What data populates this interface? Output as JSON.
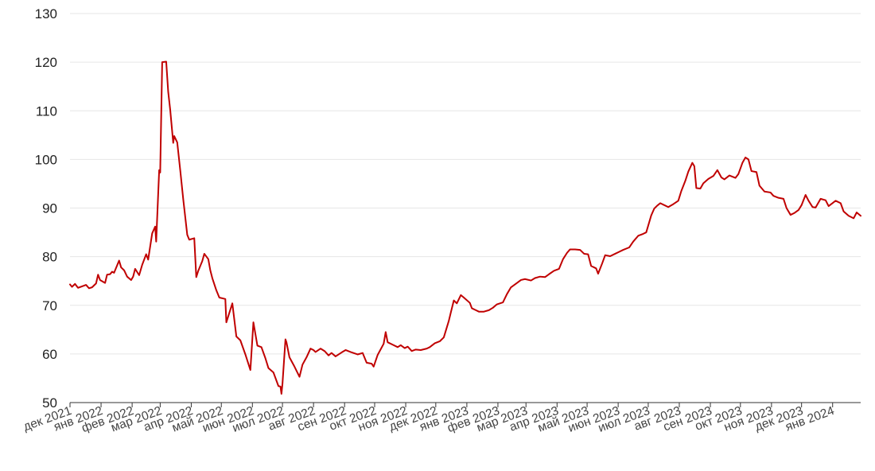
{
  "chart_data": {
    "type": "line",
    "title": "",
    "xlabel": "",
    "ylabel": "",
    "ylim": [
      50,
      130
    ],
    "y_ticks": [
      50,
      60,
      70,
      80,
      90,
      100,
      110,
      120,
      130
    ],
    "grid": "horizontal",
    "x_tick_labels": [
      "дек 2021",
      "янв 2022",
      "фев 2022",
      "мар 2022",
      "апр 2022",
      "май 2022",
      "июн 2022",
      "июл 2022",
      "авг 2022",
      "сен 2022",
      "окт 2022",
      "ноя 2022",
      "дек 2022",
      "янв 2023",
      "фев 2023",
      "мар 2023",
      "апр 2023",
      "май 2023",
      "июн 2023",
      "июл 2023",
      "авг 2023",
      "сен 2023",
      "окт 2023",
      "ноя 2023",
      "дек 2023",
      "янв 2024"
    ],
    "x_range": [
      "2021-12-01",
      "2024-01-29"
    ],
    "series": [
      {
        "name": "",
        "color": "#c00000",
        "points": [
          [
            "2021-12-01",
            74.3
          ],
          [
            "2021-12-03",
            73.8
          ],
          [
            "2021-12-06",
            74.4
          ],
          [
            "2021-12-09",
            73.6
          ],
          [
            "2021-12-13",
            73.9
          ],
          [
            "2021-12-17",
            74.2
          ],
          [
            "2021-12-20",
            73.5
          ],
          [
            "2021-12-23",
            73.7
          ],
          [
            "2021-12-27",
            74.5
          ],
          [
            "2021-12-29",
            76.3
          ],
          [
            "2021-12-31",
            75.2
          ],
          [
            "2022-01-05",
            74.6
          ],
          [
            "2022-01-07",
            76.3
          ],
          [
            "2022-01-10",
            76.4
          ],
          [
            "2022-01-12",
            76.9
          ],
          [
            "2022-01-14",
            76.7
          ],
          [
            "2022-01-17",
            78.2
          ],
          [
            "2022-01-19",
            79.2
          ],
          [
            "2022-01-21",
            77.8
          ],
          [
            "2022-01-24",
            77.2
          ],
          [
            "2022-01-27",
            75.9
          ],
          [
            "2022-01-31",
            75.2
          ],
          [
            "2022-02-02",
            75.9
          ],
          [
            "2022-02-04",
            77.5
          ],
          [
            "2022-02-08",
            76.2
          ],
          [
            "2022-02-11",
            78.3
          ],
          [
            "2022-02-15",
            80.5
          ],
          [
            "2022-02-17",
            79.4
          ],
          [
            "2022-02-21",
            84.8
          ],
          [
            "2022-02-24",
            86.2
          ],
          [
            "2022-02-25",
            83.1
          ],
          [
            "2022-02-28",
            97.8
          ],
          [
            "2022-03-01",
            97.3
          ],
          [
            "2022-03-03",
            120.0
          ],
          [
            "2022-03-07",
            120.1
          ],
          [
            "2022-03-09",
            113.9
          ],
          [
            "2022-03-11",
            110.2
          ],
          [
            "2022-03-14",
            103.4
          ],
          [
            "2022-03-15",
            104.8
          ],
          [
            "2022-03-18",
            103.5
          ],
          [
            "2022-03-21",
            97.8
          ],
          [
            "2022-03-24",
            91.8
          ],
          [
            "2022-03-28",
            84.5
          ],
          [
            "2022-03-30",
            83.5
          ],
          [
            "2022-04-04",
            83.8
          ],
          [
            "2022-04-06",
            75.8
          ],
          [
            "2022-04-08",
            77.1
          ],
          [
            "2022-04-12",
            79.1
          ],
          [
            "2022-04-14",
            80.6
          ],
          [
            "2022-04-18",
            79.5
          ],
          [
            "2022-04-20",
            77.2
          ],
          [
            "2022-04-22",
            75.6
          ],
          [
            "2022-04-26",
            73.1
          ],
          [
            "2022-04-29",
            71.6
          ],
          [
            "2022-05-05",
            71.3
          ],
          [
            "2022-05-06",
            66.5
          ],
          [
            "2022-05-12",
            70.4
          ],
          [
            "2022-05-16",
            63.6
          ],
          [
            "2022-05-20",
            62.8
          ],
          [
            "2022-05-25",
            59.9
          ],
          [
            "2022-05-30",
            56.7
          ],
          [
            "2022-06-02",
            66.5
          ],
          [
            "2022-06-06",
            61.7
          ],
          [
            "2022-06-10",
            61.4
          ],
          [
            "2022-06-14",
            59.1
          ],
          [
            "2022-06-17",
            57.1
          ],
          [
            "2022-06-22",
            56.2
          ],
          [
            "2022-06-27",
            53.4
          ],
          [
            "2022-06-29",
            53.3
          ],
          [
            "2022-06-30",
            51.8
          ],
          [
            "2022-07-01",
            53.8
          ],
          [
            "2022-07-04",
            63.0
          ],
          [
            "2022-07-05",
            62.4
          ],
          [
            "2022-07-08",
            59.3
          ],
          [
            "2022-07-13",
            57.4
          ],
          [
            "2022-07-18",
            55.3
          ],
          [
            "2022-07-21",
            57.8
          ],
          [
            "2022-07-25",
            59.3
          ],
          [
            "2022-07-29",
            61.1
          ],
          [
            "2022-08-01",
            60.8
          ],
          [
            "2022-08-03",
            60.4
          ],
          [
            "2022-08-08",
            61.1
          ],
          [
            "2022-08-12",
            60.6
          ],
          [
            "2022-08-16",
            59.7
          ],
          [
            "2022-08-19",
            60.2
          ],
          [
            "2022-08-23",
            59.5
          ],
          [
            "2022-08-29",
            60.3
          ],
          [
            "2022-09-02",
            60.8
          ],
          [
            "2022-09-07",
            60.4
          ],
          [
            "2022-09-14",
            59.9
          ],
          [
            "2022-09-19",
            60.2
          ],
          [
            "2022-09-23",
            58.2
          ],
          [
            "2022-09-28",
            58.0
          ],
          [
            "2022-09-30",
            57.4
          ],
          [
            "2022-10-04",
            59.8
          ],
          [
            "2022-10-10",
            62.1
          ],
          [
            "2022-10-12",
            64.5
          ],
          [
            "2022-10-14",
            62.4
          ],
          [
            "2022-10-19",
            61.9
          ],
          [
            "2022-10-24",
            61.4
          ],
          [
            "2022-10-27",
            61.8
          ],
          [
            "2022-10-31",
            61.2
          ],
          [
            "2022-11-03",
            61.5
          ],
          [
            "2022-11-07",
            60.6
          ],
          [
            "2022-11-11",
            60.9
          ],
          [
            "2022-11-16",
            60.8
          ],
          [
            "2022-11-22",
            61.1
          ],
          [
            "2022-11-25",
            61.4
          ],
          [
            "2022-11-30",
            62.2
          ],
          [
            "2022-12-05",
            62.6
          ],
          [
            "2022-12-09",
            63.4
          ],
          [
            "2022-12-14",
            66.8
          ],
          [
            "2022-12-16",
            68.5
          ],
          [
            "2022-12-19",
            71.0
          ],
          [
            "2022-12-22",
            70.4
          ],
          [
            "2022-12-26",
            72.1
          ],
          [
            "2022-12-29",
            71.6
          ],
          [
            "2023-01-04",
            70.5
          ],
          [
            "2023-01-06",
            69.4
          ],
          [
            "2023-01-10",
            69.0
          ],
          [
            "2023-01-13",
            68.7
          ],
          [
            "2023-01-18",
            68.7
          ],
          [
            "2023-01-23",
            69.0
          ],
          [
            "2023-01-27",
            69.5
          ],
          [
            "2023-01-31",
            70.2
          ],
          [
            "2023-02-06",
            70.6
          ],
          [
            "2023-02-10",
            72.3
          ],
          [
            "2023-02-14",
            73.7
          ],
          [
            "2023-02-20",
            74.6
          ],
          [
            "2023-02-24",
            75.2
          ],
          [
            "2023-02-28",
            75.4
          ],
          [
            "2023-03-06",
            75.1
          ],
          [
            "2023-03-10",
            75.6
          ],
          [
            "2023-03-15",
            75.9
          ],
          [
            "2023-03-20",
            75.8
          ],
          [
            "2023-03-24",
            76.4
          ],
          [
            "2023-03-29",
            77.1
          ],
          [
            "2023-04-03",
            77.5
          ],
          [
            "2023-04-07",
            79.5
          ],
          [
            "2023-04-11",
            80.8
          ],
          [
            "2023-04-14",
            81.5
          ],
          [
            "2023-04-19",
            81.5
          ],
          [
            "2023-04-24",
            81.4
          ],
          [
            "2023-04-28",
            80.6
          ],
          [
            "2023-05-02",
            80.5
          ],
          [
            "2023-05-05",
            78.1
          ],
          [
            "2023-05-10",
            77.6
          ],
          [
            "2023-05-12",
            76.5
          ],
          [
            "2023-05-16",
            78.6
          ],
          [
            "2023-05-19",
            80.3
          ],
          [
            "2023-05-24",
            80.1
          ],
          [
            "2023-05-29",
            80.6
          ],
          [
            "2023-06-01",
            80.9
          ],
          [
            "2023-06-06",
            81.4
          ],
          [
            "2023-06-12",
            81.9
          ],
          [
            "2023-06-16",
            83.1
          ],
          [
            "2023-06-21",
            84.3
          ],
          [
            "2023-06-26",
            84.7
          ],
          [
            "2023-06-29",
            85.0
          ],
          [
            "2023-07-04",
            88.5
          ],
          [
            "2023-07-07",
            89.9
          ],
          [
            "2023-07-10",
            90.5
          ],
          [
            "2023-07-13",
            91.0
          ],
          [
            "2023-07-17",
            90.6
          ],
          [
            "2023-07-21",
            90.2
          ],
          [
            "2023-07-26",
            90.8
          ],
          [
            "2023-07-31",
            91.5
          ],
          [
            "2023-08-03",
            93.5
          ],
          [
            "2023-08-07",
            95.6
          ],
          [
            "2023-08-10",
            97.5
          ],
          [
            "2023-08-14",
            99.3
          ],
          [
            "2023-08-16",
            98.6
          ],
          [
            "2023-08-18",
            94.1
          ],
          [
            "2023-08-22",
            94.0
          ],
          [
            "2023-08-25",
            95.1
          ],
          [
            "2023-08-30",
            96.0
          ],
          [
            "2023-09-04",
            96.6
          ],
          [
            "2023-09-08",
            97.8
          ],
          [
            "2023-09-12",
            96.3
          ],
          [
            "2023-09-15",
            95.9
          ],
          [
            "2023-09-20",
            96.7
          ],
          [
            "2023-09-26",
            96.2
          ],
          [
            "2023-09-29",
            97.0
          ],
          [
            "2023-10-03",
            99.3
          ],
          [
            "2023-10-06",
            100.4
          ],
          [
            "2023-10-09",
            100.0
          ],
          [
            "2023-10-12",
            97.6
          ],
          [
            "2023-10-17",
            97.4
          ],
          [
            "2023-10-20",
            94.6
          ],
          [
            "2023-10-25",
            93.4
          ],
          [
            "2023-10-31",
            93.2
          ],
          [
            "2023-11-03",
            92.5
          ],
          [
            "2023-11-08",
            92.1
          ],
          [
            "2023-11-13",
            91.9
          ],
          [
            "2023-11-16",
            90.0
          ],
          [
            "2023-11-20",
            88.6
          ],
          [
            "2023-11-24",
            89.0
          ],
          [
            "2023-11-28",
            89.6
          ],
          [
            "2023-12-01",
            90.6
          ],
          [
            "2023-12-05",
            92.7
          ],
          [
            "2023-12-08",
            91.5
          ],
          [
            "2023-12-12",
            90.2
          ],
          [
            "2023-12-15",
            90.1
          ],
          [
            "2023-12-20",
            91.9
          ],
          [
            "2023-12-25",
            91.6
          ],
          [
            "2023-12-28",
            90.4
          ],
          [
            "2024-01-04",
            91.5
          ],
          [
            "2024-01-09",
            91.0
          ],
          [
            "2024-01-12",
            89.3
          ],
          [
            "2024-01-17",
            88.4
          ],
          [
            "2024-01-22",
            87.9
          ],
          [
            "2024-01-25",
            89.1
          ],
          [
            "2024-01-29",
            88.4
          ]
        ]
      }
    ]
  }
}
